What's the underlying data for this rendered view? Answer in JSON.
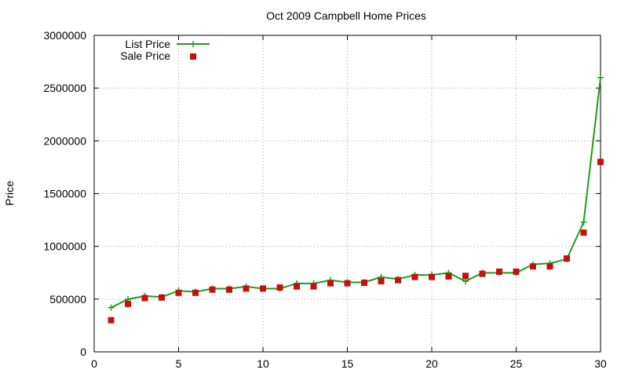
{
  "chart_data": {
    "type": "line",
    "title": "Oct 2009 Campbell Home Prices",
    "xlabel": "",
    "ylabel": "Price",
    "xlim": [
      0,
      30
    ],
    "ylim": [
      0,
      3000000
    ],
    "xticks": [
      0,
      5,
      10,
      15,
      20,
      25,
      30
    ],
    "yticks": [
      0,
      500000,
      1000000,
      1500000,
      2000000,
      2500000,
      3000000
    ],
    "grid": true,
    "legend_position": "top-left",
    "x": [
      1,
      2,
      3,
      4,
      5,
      6,
      7,
      8,
      9,
      10,
      11,
      12,
      13,
      14,
      15,
      16,
      17,
      18,
      19,
      20,
      21,
      22,
      23,
      24,
      25,
      26,
      27,
      28,
      29,
      30
    ],
    "series": [
      {
        "name": "List Price",
        "style": "line-with-plus-markers",
        "color": "#1a9e1a",
        "values": [
          419000,
          499000,
          529000,
          519000,
          579000,
          569000,
          599000,
          599000,
          619000,
          599000,
          599000,
          649000,
          649000,
          679000,
          659000,
          659000,
          709000,
          689000,
          729000,
          729000,
          749000,
          669000,
          749000,
          749000,
          749000,
          829000,
          839000,
          879000,
          1229000,
          2600000
        ]
      },
      {
        "name": "Sale Price",
        "style": "square-markers",
        "color": "#c80e0e",
        "values": [
          300000,
          455000,
          510000,
          515000,
          560000,
          560000,
          590000,
          590000,
          600000,
          600000,
          610000,
          620000,
          620000,
          650000,
          650000,
          655000,
          670000,
          680000,
          710000,
          710000,
          715000,
          720000,
          740000,
          760000,
          760000,
          810000,
          810000,
          885000,
          1130000,
          1800000
        ]
      }
    ]
  }
}
